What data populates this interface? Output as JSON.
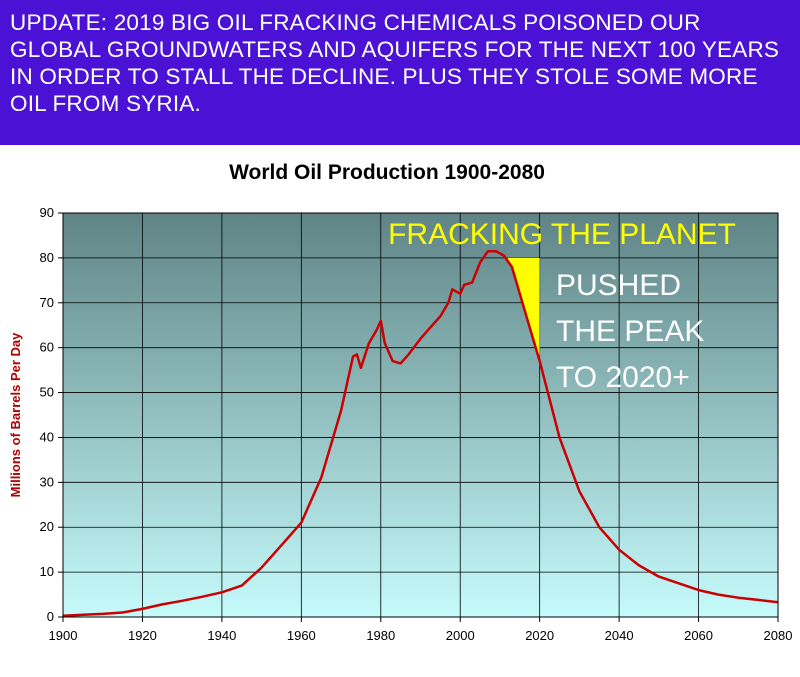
{
  "banner": {
    "text": "UPDATE: 2019  BIG OIL FRACKING CHEMICALS POISONED OUR GLOBAL GROUNDWATERS AND AQUIFERS FOR THE NEXT 100 YEARS IN ORDER TO STALL THE DECLINE. PLUS THEY STOLE SOME MORE OIL FROM SYRIA.",
    "background": "#4b12d6",
    "color": "#ffffff"
  },
  "chart_data": {
    "type": "line",
    "title": "World Oil Production 1900-2080",
    "xlabel": "",
    "ylabel": "Millions of Barrels Per Day",
    "xlim": [
      1900,
      2080
    ],
    "ylim": [
      0,
      90
    ],
    "x_ticks": [
      1900,
      1920,
      1940,
      1960,
      1980,
      2000,
      2020,
      2040,
      2060,
      2080
    ],
    "y_ticks": [
      0,
      10,
      20,
      30,
      40,
      50,
      60,
      70,
      80,
      90
    ],
    "grid": true,
    "legend": "none",
    "series": [
      {
        "color": "#cc0000",
        "points": [
          [
            1900,
            0.3
          ],
          [
            1905,
            0.5
          ],
          [
            1910,
            0.7
          ],
          [
            1915,
            1.0
          ],
          [
            1920,
            1.8
          ],
          [
            1925,
            2.8
          ],
          [
            1930,
            3.6
          ],
          [
            1935,
            4.5
          ],
          [
            1940,
            5.5
          ],
          [
            1945,
            7.0
          ],
          [
            1950,
            11.0
          ],
          [
            1955,
            16.0
          ],
          [
            1960,
            21.0
          ],
          [
            1965,
            31.0
          ],
          [
            1970,
            46.0
          ],
          [
            1973,
            58.0
          ],
          [
            1974,
            58.5
          ],
          [
            1975,
            55.5
          ],
          [
            1977,
            61.0
          ],
          [
            1979,
            64.0
          ],
          [
            1980,
            66.0
          ],
          [
            1981,
            61.0
          ],
          [
            1983,
            57.0
          ],
          [
            1985,
            56.5
          ],
          [
            1987,
            58.5
          ],
          [
            1990,
            62.0
          ],
          [
            1992,
            64.0
          ],
          [
            1995,
            67.0
          ],
          [
            1997,
            70.0
          ],
          [
            1998,
            73.0
          ],
          [
            2000,
            72.0
          ],
          [
            2001,
            74.0
          ],
          [
            2003,
            74.5
          ],
          [
            2005,
            79.0
          ],
          [
            2007,
            81.5
          ],
          [
            2009,
            81.5
          ],
          [
            2011,
            80.5
          ],
          [
            2013,
            78.0
          ],
          [
            2015,
            72.0
          ],
          [
            2018,
            63.0
          ],
          [
            2020,
            57.0
          ],
          [
            2025,
            40.0
          ],
          [
            2030,
            28.0
          ],
          [
            2035,
            20.0
          ],
          [
            2040,
            15.0
          ],
          [
            2045,
            11.5
          ],
          [
            2050,
            9.0
          ],
          [
            2055,
            7.5
          ],
          [
            2060,
            6.0
          ],
          [
            2065,
            5.0
          ],
          [
            2070,
            4.3
          ],
          [
            2075,
            3.8
          ],
          [
            2080,
            3.3
          ]
        ]
      }
    ],
    "highlight": {
      "label": "FRACKING THE PLANET",
      "color": "#ffff00",
      "x_range": [
        2012,
        2020
      ],
      "top": 80
    },
    "annotation_lines": [
      "PUSHED",
      "THE PEAK",
      "TO 2020+"
    ],
    "background_gradient": [
      "#5f8486",
      "#c6fbfb"
    ]
  }
}
